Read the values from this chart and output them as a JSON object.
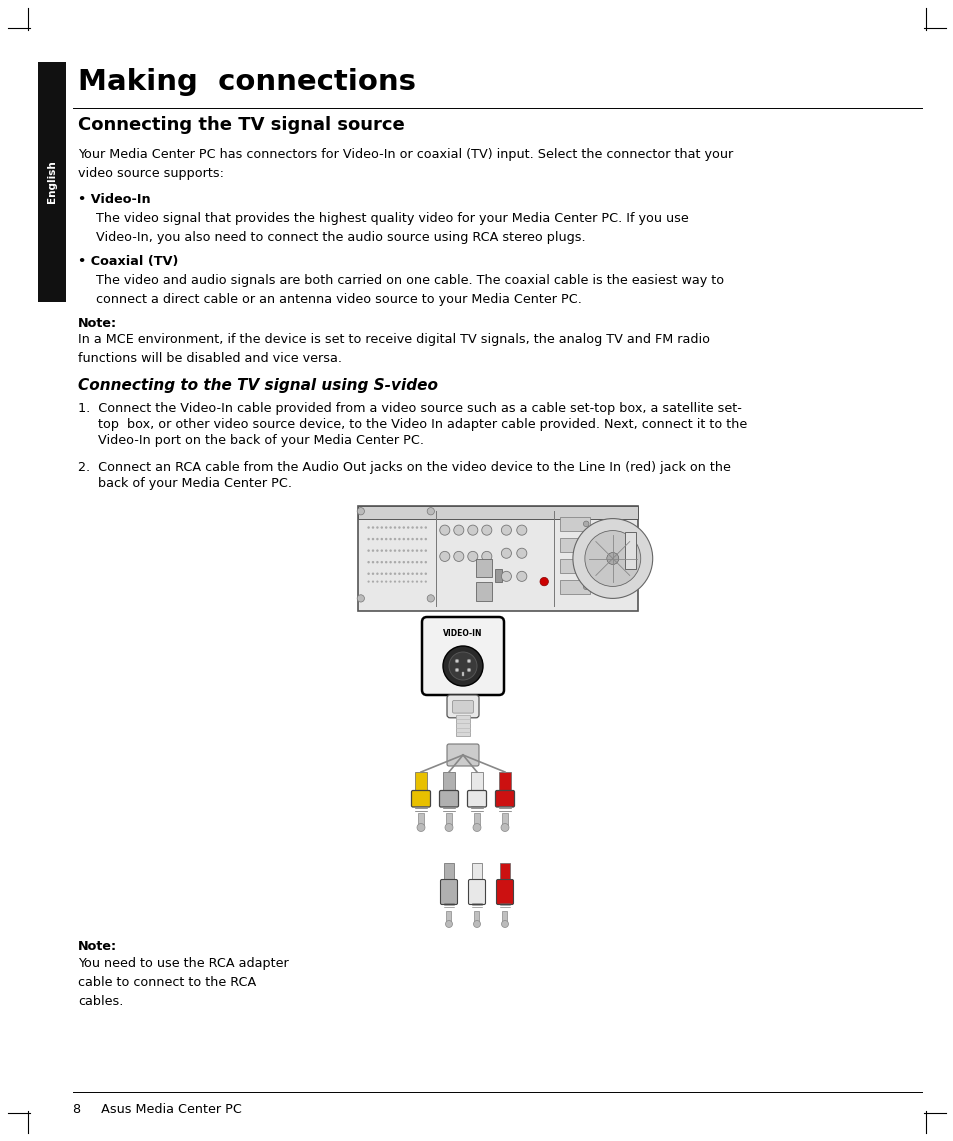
{
  "bg_color": "#ffffff",
  "sidebar_color": "#111111",
  "sidebar_text": "English",
  "title": "Making  connections",
  "section1_title": "Connecting the TV signal source",
  "section1_body1": "Your Media Center PC has connectors for Video-In or coaxial (TV) input. Select the connector that your\nvideo source supports:",
  "bullet1_title": "• Video-In",
  "bullet1_body": "The video signal that provides the highest quality video for your Media Center PC. If you use\nVideo-In, you also need to connect the audio source using RCA stereo plugs.",
  "bullet2_title": "• Coaxial (TV)",
  "bullet2_body": "The video and audio signals are both carried on one cable. The coaxial cable is the easiest way to\nconnect a direct cable or an antenna video source to your Media Center PC.",
  "note_label": "Note:",
  "note_body": "In a MCE environment, if the device is set to receive digital TV signals, the analog TV and FM radio\nfunctions will be disabled and vice versa.",
  "section2_title": "Connecting to the TV signal using S-video",
  "step1_a": "1.  Connect the Video-In cable provided from a video source such as a cable set-top box, a satellite set-",
  "step1_b": "     top  box, or other video source device, to the Video In adapter cable provided. Next, connect it to the",
  "step1_c": "     Video-In port on the back of your Media Center PC.",
  "step2_a": "2.  Connect an RCA cable from the Audio Out jacks on the video device to the Line In (red) jack on the",
  "step2_b": "     back of your Media Center PC.",
  "note2_label": "Note:",
  "note2_body": "You need to use the RCA adapter\ncable to connect to the RCA\ncables.",
  "footer": "8     Asus Media Center PC"
}
